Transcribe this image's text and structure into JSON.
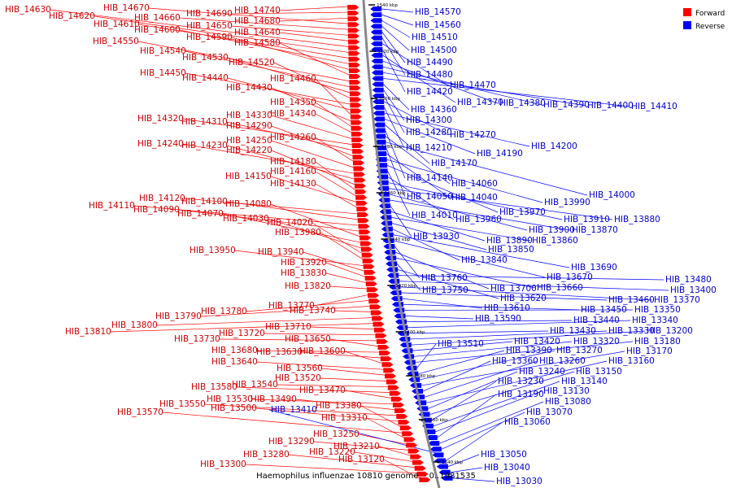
{
  "caption": "Haemophilus influenzae 10810 genome. - 0..1981535",
  "legend": [
    {
      "label": "Forward",
      "color": "#ff0000"
    },
    {
      "label": "Reverse",
      "color": "#0000ff"
    }
  ],
  "colors": {
    "forward_label": "#cc0000",
    "reverse_label": "#0000cc",
    "forward_fill": "#ff0000",
    "reverse_fill": "#0000ff",
    "backbone": "#888888"
  },
  "ticks": [
    "1540 kbp",
    "1520 kbp",
    "1500 kbp",
    "1480 kbp",
    "1460 kbp",
    "1440 kbp",
    "1420 kbp",
    "1400 kbp",
    "1380 kbp",
    "1360 kbp",
    "1340 kbp"
  ],
  "forward_genes": [
    "HIB_14740",
    "HIB_14690",
    "HIB_14680",
    "HIB_14670",
    "HIB_14660",
    "HIB_14650",
    "HIB_14640",
    "HIB_14630",
    "HIB_14620",
    "HIB_14610",
    "HIB_14600",
    "HIB_14590",
    "HIB_14580",
    "HIB_14550",
    "HIB_14540",
    "HIB_14530",
    "HIB_14520",
    "HIB_14450",
    "HIB_14440",
    "HIB_14460",
    "HIB_14430",
    "HIB_14350",
    "HIB_14340",
    "HIB_14330",
    "HIB_14320",
    "HIB_14310",
    "HIB_14290",
    "HIB_14260",
    "HIB_14250",
    "HIB_14240",
    "HIB_14230",
    "HIB_14220",
    "HIB_14180",
    "HIB_14160",
    "HIB_14150",
    "HIB_14130",
    "HIB_14120",
    "HIB_14100",
    "HIB_14110",
    "HIB_14090",
    "HIB_14080",
    "HIB_14070",
    "HIB_14030",
    "HIB_14020",
    "HIB_13980",
    "HIB_13950",
    "HIB_13940",
    "HIB_13920",
    "HIB_13830",
    "HIB_13820",
    "HIB_13770",
    "HIB_13780",
    "HIB_13790",
    "HIB_13740",
    "HIB_13800",
    "HIB_13810",
    "HIB_13710",
    "HIB_13720",
    "HIB_13730",
    "HIB_13650",
    "HIB_13680",
    "HIB_13630",
    "HIB_13600",
    "HIB_13640",
    "HIB_13560",
    "HIB_13520",
    "HIB_13540",
    "HIB_13580",
    "HIB_13470",
    "HIB_13530",
    "HIB_13490",
    "HIB_13550",
    "HIB_13500",
    "HIB_13380",
    "HIB_13570",
    "HIB_13310",
    "HIB_13250",
    "HIB_13290",
    "HIB_13210",
    "HIB_13220",
    "HIB_13280",
    "HIB_13300",
    "HIB_13120"
  ],
  "reverse_genes": [
    "HIB_14570",
    "HIB_14560",
    "HIB_14510",
    "HIB_14500",
    "HIB_14490",
    "HIB_14480",
    "HIB_14470",
    "HIB_14420",
    "HIB_14370",
    "HIB_14380",
    "HIB_14390",
    "HIB_14400",
    "HIB_14410",
    "HIB_14360",
    "HIB_14300",
    "HIB_14280",
    "HIB_14270",
    "HIB_14210",
    "HIB_14200",
    "HIB_14190",
    "HIB_14170",
    "HIB_14140",
    "HIB_14060",
    "HIB_14000",
    "HIB_14050",
    "HIB_14040",
    "HIB_13990",
    "HIB_13970",
    "HIB_14010",
    "HIB_13960",
    "HIB_13910",
    "HIB_13880",
    "HIB_13900",
    "HIB_13870",
    "HIB_13930",
    "HIB_13890",
    "HIB_13860",
    "HIB_13850",
    "HIB_13840",
    "HIB_13690",
    "HIB_13670",
    "HIB_13760",
    "HIB_13700",
    "HIB_13660",
    "HIB_13750",
    "HIB_13620",
    "HIB_13480",
    "HIB_13400",
    "HIB_13370",
    "HIB_13460",
    "HIB_13610",
    "HIB_13450",
    "HIB_13350",
    "HIB_13590",
    "HIB_13440",
    "HIB_13340",
    "HIB_13430",
    "HIB_13330",
    "HIB_13200",
    "HIB_13420",
    "HIB_13320",
    "HIB_13180",
    "HIB_13510",
    "HIB_13390",
    "HIB_13270",
    "HIB_13170",
    "HIB_13360",
    "HIB_13260",
    "HIB_13160",
    "HIB_13240",
    "HIB_13150",
    "HIB_13230",
    "HIB_13140",
    "HIB_13130",
    "HIB_13190",
    "HIB_13080",
    "HIB_13070",
    "HIB_13410",
    "HIB_13060",
    "HIB_13050",
    "HIB_13040",
    "HIB_13030"
  ]
}
